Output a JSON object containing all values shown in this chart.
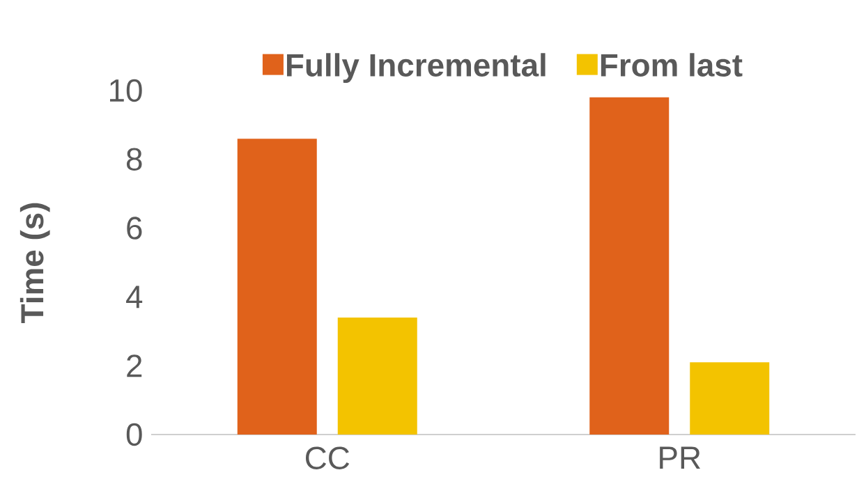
{
  "chart_data": {
    "type": "bar",
    "ylabel": "Time (s)",
    "categories": [
      "CC",
      "PR"
    ],
    "series": [
      {
        "name": "Fully Incremental",
        "color": "#e0621b",
        "values": [
          8.6,
          9.8
        ]
      },
      {
        "name": "From last",
        "color": "#f3c300",
        "values": [
          3.4,
          2.1
        ]
      }
    ],
    "ylim": [
      0,
      10
    ],
    "yticks": [
      0,
      2,
      4,
      6,
      8,
      10
    ],
    "legend": "top"
  }
}
